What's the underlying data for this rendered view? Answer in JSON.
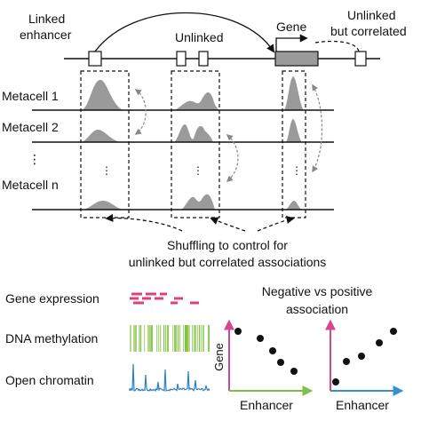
{
  "top": {
    "linked_enhancer_line1": "Linked",
    "linked_enhancer_line2": "enhancer",
    "unlinked": "Unlinked",
    "gene": "Gene",
    "unlinked_corr_line1": "Unlinked",
    "unlinked_corr_line2": "but correlated"
  },
  "metacells": {
    "labels": [
      "Metacell 1",
      "Metacell 2",
      "Metacell n"
    ],
    "row_dots": "⋮",
    "box_dots": "⋮"
  },
  "shuffling": {
    "line1": "Shuffling to control for",
    "line2": "unlinked but correlated associations"
  },
  "modalities": {
    "gene_expression": "Gene expression",
    "dna_methylation": "DNA methylation",
    "open_chromatin": "Open chromatin",
    "colors": {
      "gene_expression": "#e0407a",
      "dna_methylation": "#7fbf3f",
      "open_chromatin": "#2f80c0"
    }
  },
  "association": {
    "title_line1": "Negative vs positive",
    "title_line2": "association",
    "y_label": "Gene",
    "x_label_left": "Enhancer",
    "x_label_right": "Enhancer",
    "colors": {
      "y_axis": "#d6468f",
      "x_axis_left": "#7fc04a",
      "x_axis_right": "#3a8fcf"
    }
  }
}
